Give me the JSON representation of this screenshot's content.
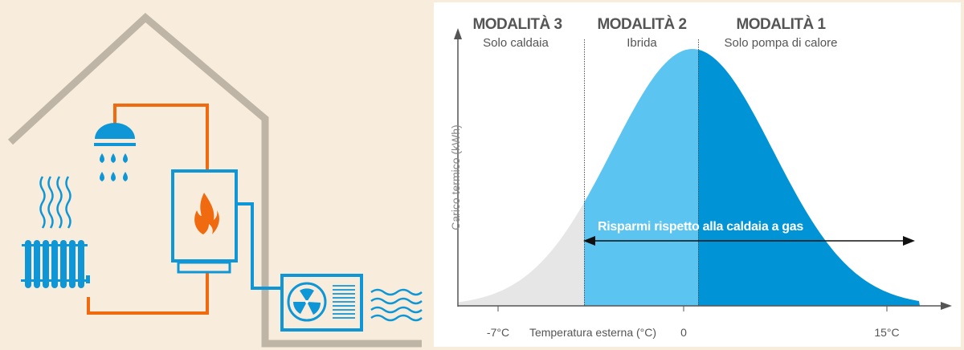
{
  "modes": [
    {
      "title": "MODALITÀ 3",
      "subtitle": "Solo caldaia"
    },
    {
      "title": "MODALITÀ 2",
      "subtitle": "Ibrida"
    },
    {
      "title": "MODALITÀ 1",
      "subtitle": "Solo pompa di calore"
    }
  ],
  "axes": {
    "y_label": "Carico termico (kWh)",
    "x_label": "Temperatura esterna (°C)",
    "ticks": [
      "-7°C",
      "0",
      "15°C"
    ]
  },
  "savings_label": "Risparmi rispetto alla caldaia a gas",
  "colors": {
    "background": "#f8eddc",
    "house": "#bfb5a6",
    "hot_pipe": "#f06a0f",
    "blue": "#0e96d6",
    "boiler_only": "#e6e6e6",
    "hybrid": "#5bc4f1",
    "heat_pump_only": "#0094d6"
  }
}
